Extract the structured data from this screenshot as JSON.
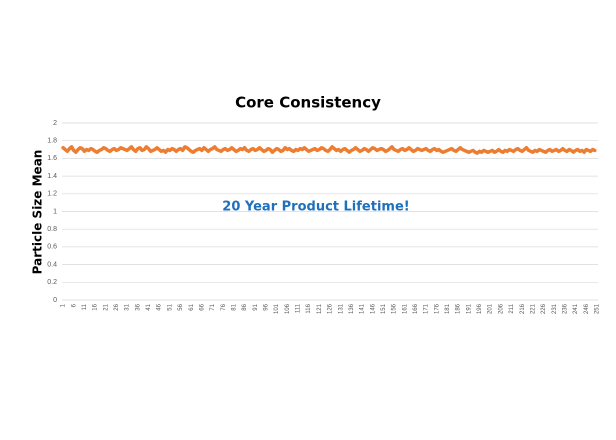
{
  "chart_data": {
    "type": "line",
    "title": "Core Consistency",
    "y_label": "Particle Size Mean",
    "annotation": "20 Year Product Lifetime!",
    "x": [
      1,
      2,
      3,
      4,
      5,
      6,
      7,
      8,
      9,
      10,
      11,
      12,
      13,
      14,
      15,
      16,
      17,
      18,
      19,
      20,
      21,
      22,
      23,
      24,
      25,
      26,
      27,
      28,
      29,
      30,
      31,
      32,
      33,
      34,
      35,
      36,
      37,
      38,
      39,
      40,
      41,
      42,
      43,
      44,
      45,
      46,
      47,
      48,
      49,
      50,
      51,
      52,
      53,
      54,
      55,
      56,
      57,
      58,
      59,
      60,
      61,
      62,
      63,
      64,
      65,
      66,
      67,
      68,
      69,
      70,
      71,
      72,
      73,
      74,
      75,
      76,
      77,
      78,
      79,
      80,
      81,
      82,
      83,
      84,
      85,
      86,
      87,
      88,
      89,
      90,
      91,
      92,
      93,
      94,
      95,
      96,
      97,
      98,
      99,
      100,
      101,
      102,
      103,
      104,
      105,
      106,
      107,
      108,
      109,
      110,
      111,
      112,
      113,
      114,
      115,
      116,
      117,
      118,
      119,
      120,
      121,
      122,
      123,
      124,
      125,
      126,
      127,
      128,
      129,
      130,
      131,
      132,
      133,
      134,
      135,
      136,
      137,
      138,
      139,
      140,
      141,
      142,
      143,
      144,
      145,
      146,
      147,
      148,
      149,
      150,
      151,
      152,
      153,
      154,
      155,
      156,
      157,
      158,
      159,
      160,
      161,
      162,
      163,
      164,
      165,
      166,
      167,
      168,
      169,
      170,
      171,
      172,
      173,
      174,
      175,
      176,
      177,
      178,
      179,
      180,
      181,
      182,
      183,
      184,
      185,
      186,
      187,
      188,
      189,
      190,
      191,
      192,
      193,
      194,
      195,
      196,
      197,
      198,
      199,
      200,
      201,
      202,
      203,
      204,
      205,
      206,
      207,
      208,
      209,
      210,
      211,
      212,
      213,
      214,
      215,
      216,
      217,
      218,
      219,
      220,
      221,
      222,
      223,
      224,
      225,
      226,
      227,
      228,
      229,
      230,
      231,
      232,
      233,
      234,
      235,
      236,
      237,
      238,
      239,
      240,
      241,
      242,
      243,
      244,
      245,
      246,
      247,
      248,
      249,
      250
    ],
    "series": [
      {
        "name": "Particle Size Mean",
        "color": "#ed7d31",
        "values": [
          1.72,
          1.7,
          1.68,
          1.71,
          1.73,
          1.69,
          1.67,
          1.7,
          1.72,
          1.71,
          1.68,
          1.7,
          1.69,
          1.71,
          1.7,
          1.68,
          1.67,
          1.69,
          1.7,
          1.72,
          1.71,
          1.69,
          1.68,
          1.7,
          1.71,
          1.69,
          1.7,
          1.72,
          1.71,
          1.7,
          1.69,
          1.71,
          1.73,
          1.7,
          1.68,
          1.71,
          1.72,
          1.69,
          1.7,
          1.73,
          1.71,
          1.68,
          1.69,
          1.7,
          1.72,
          1.7,
          1.68,
          1.69,
          1.67,
          1.7,
          1.69,
          1.71,
          1.7,
          1.68,
          1.7,
          1.71,
          1.69,
          1.73,
          1.72,
          1.7,
          1.68,
          1.67,
          1.69,
          1.7,
          1.71,
          1.69,
          1.72,
          1.7,
          1.68,
          1.7,
          1.71,
          1.73,
          1.7,
          1.69,
          1.68,
          1.7,
          1.71,
          1.69,
          1.7,
          1.72,
          1.7,
          1.68,
          1.69,
          1.71,
          1.7,
          1.72,
          1.69,
          1.68,
          1.7,
          1.71,
          1.69,
          1.7,
          1.72,
          1.7,
          1.68,
          1.69,
          1.71,
          1.7,
          1.67,
          1.69,
          1.71,
          1.7,
          1.68,
          1.69,
          1.72,
          1.7,
          1.71,
          1.69,
          1.68,
          1.7,
          1.69,
          1.71,
          1.7,
          1.72,
          1.7,
          1.68,
          1.69,
          1.7,
          1.71,
          1.69,
          1.7,
          1.72,
          1.71,
          1.69,
          1.68,
          1.7,
          1.73,
          1.71,
          1.69,
          1.7,
          1.68,
          1.7,
          1.71,
          1.69,
          1.67,
          1.69,
          1.7,
          1.72,
          1.7,
          1.68,
          1.69,
          1.71,
          1.7,
          1.68,
          1.7,
          1.72,
          1.71,
          1.69,
          1.7,
          1.71,
          1.7,
          1.68,
          1.69,
          1.71,
          1.73,
          1.7,
          1.69,
          1.68,
          1.7,
          1.71,
          1.69,
          1.7,
          1.72,
          1.7,
          1.68,
          1.69,
          1.71,
          1.7,
          1.69,
          1.7,
          1.71,
          1.69,
          1.68,
          1.7,
          1.71,
          1.69,
          1.7,
          1.68,
          1.67,
          1.68,
          1.69,
          1.7,
          1.71,
          1.69,
          1.68,
          1.7,
          1.72,
          1.7,
          1.69,
          1.68,
          1.67,
          1.68,
          1.69,
          1.67,
          1.66,
          1.68,
          1.67,
          1.69,
          1.68,
          1.67,
          1.68,
          1.69,
          1.67,
          1.68,
          1.7,
          1.68,
          1.67,
          1.69,
          1.68,
          1.7,
          1.69,
          1.68,
          1.7,
          1.71,
          1.69,
          1.68,
          1.7,
          1.72,
          1.69,
          1.68,
          1.67,
          1.69,
          1.68,
          1.7,
          1.69,
          1.68,
          1.67,
          1.69,
          1.7,
          1.68,
          1.69,
          1.7,
          1.68,
          1.69,
          1.71,
          1.69,
          1.68,
          1.7,
          1.69,
          1.67,
          1.69,
          1.7,
          1.68,
          1.69,
          1.67,
          1.7,
          1.69,
          1.68,
          1.7,
          1.69
        ]
      }
    ],
    "xlim": [
      0.5,
      251.5
    ],
    "xticks": [
      1,
      6,
      11,
      16,
      21,
      26,
      31,
      36,
      41,
      46,
      51,
      56,
      61,
      66,
      71,
      76,
      81,
      86,
      91,
      96,
      101,
      106,
      111,
      116,
      121,
      126,
      131,
      136,
      141,
      146,
      151,
      156,
      161,
      166,
      171,
      176,
      181,
      186,
      191,
      196,
      201,
      206,
      211,
      216,
      221,
      226,
      231,
      236,
      241,
      246,
      251
    ],
    "ylim": [
      0,
      2
    ],
    "yticks": [
      0,
      0.2,
      0.4,
      0.6,
      0.8,
      1,
      1.2,
      1.4,
      1.6,
      1.8,
      2
    ],
    "grid": true
  }
}
